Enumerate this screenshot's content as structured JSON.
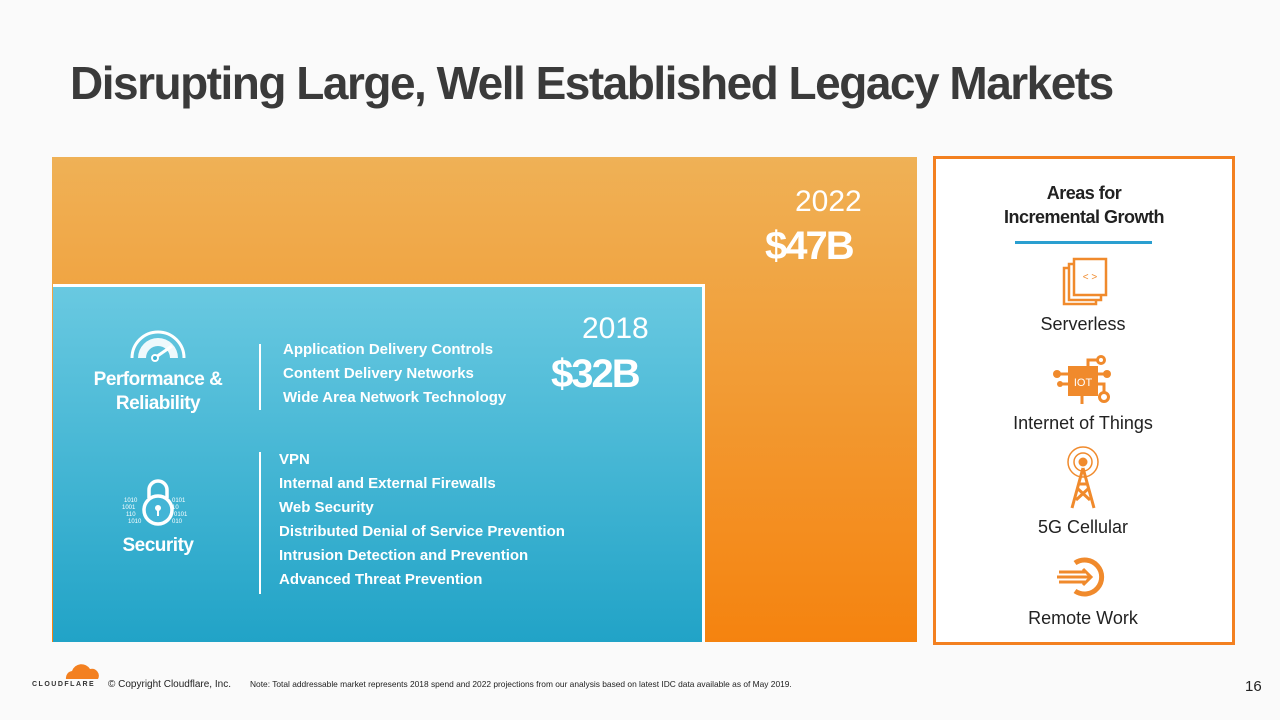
{
  "title": "Disrupting Large, Well Established Legacy Markets",
  "market_2022": {
    "year": "2022",
    "value": "$47B"
  },
  "market_2018": {
    "year": "2018",
    "value": "$32B"
  },
  "categories": [
    {
      "label_line1": "Performance &",
      "label_line2": "Reliability",
      "icon": "speedometer-icon",
      "items": [
        "Application Delivery Controls",
        "Content Delivery Networks",
        "Wide Area Network Technology"
      ]
    },
    {
      "label": "Security",
      "icon": "binary-lock-icon",
      "items": [
        "VPN",
        "Internal and External Firewalls",
        "Web Security",
        "Distributed Denial of Service Prevention",
        "Intrusion Detection and Prevention",
        "Advanced Threat Prevention"
      ]
    }
  ],
  "growth": {
    "heading_line1": "Areas for",
    "heading_line2": "Incremental Growth",
    "areas": [
      {
        "label": "Serverless",
        "icon": "code-pages-icon"
      },
      {
        "label": "Internet of Things",
        "icon": "iot-chip-icon",
        "icon_text": "IOT"
      },
      {
        "label": "5G Cellular",
        "icon": "cell-tower-icon"
      },
      {
        "label": "Remote Work",
        "icon": "remote-login-icon"
      }
    ]
  },
  "footer": {
    "logo_text": "CLOUDFLARE",
    "copyright": "© Copyright Cloudflare, Inc.",
    "note": "Note: Total addressable market represents 2018 spend and 2022 projections from our analysis based on latest IDC data available as of May 2019.",
    "page_number": "16"
  },
  "colors": {
    "orange": "#f38020",
    "blue": "#21a3c7",
    "accent_line": "#2a9fd0"
  }
}
